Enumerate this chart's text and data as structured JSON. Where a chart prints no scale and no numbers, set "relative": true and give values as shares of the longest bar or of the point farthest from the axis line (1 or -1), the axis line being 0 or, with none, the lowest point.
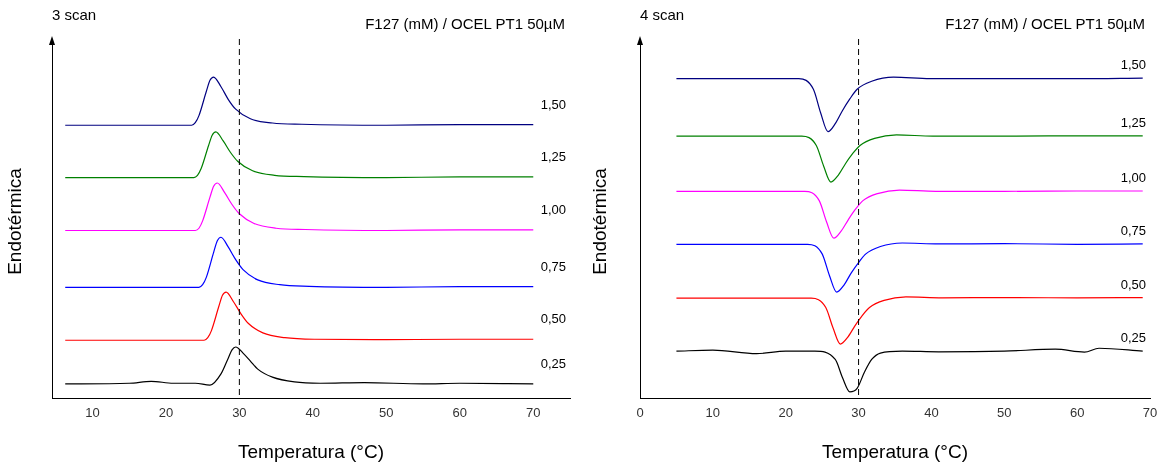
{
  "chart_data": [
    {
      "type": "line",
      "title": "3 scan",
      "subtitle": "F127 (mM) / OCEL PT1 50µM",
      "xlabel": "Temperatura (°C)",
      "ylabel": "Endotérmica",
      "relative": true,
      "xlim": [
        4.5,
        75
      ],
      "xticks": [
        10,
        20,
        30,
        40,
        50,
        60,
        70
      ],
      "grid": false,
      "legend": false,
      "marker": "none",
      "line_style": "solid",
      "ref_lines": [
        {
          "axis": "x",
          "value": 30,
          "color": "#000000",
          "line_style": "dashed"
        }
      ],
      "series": [
        {
          "name": "1,50",
          "color": "#000080",
          "x": [
            6.3,
            23.5,
            24,
            24.5,
            25.5,
            26,
            26.5,
            27.5,
            28.5,
            29.5,
            31.5,
            34.5,
            38.5,
            50,
            60,
            70
          ],
          "values": [
            0.85,
            0.85,
            0.858,
            0.88,
            0.955,
            0.99,
            1.0,
            0.97,
            0.93,
            0.9,
            0.87,
            0.857,
            0.853,
            0.85,
            0.852,
            0.852
          ]
        },
        {
          "name": "1,25",
          "color": "#008000",
          "x": [
            6.3,
            23.8,
            24.3,
            24.8,
            25.8,
            26.3,
            26.8,
            27.8,
            28.8,
            29.8,
            31.8,
            34.8,
            38.8,
            50,
            60,
            70
          ],
          "values": [
            0.687,
            0.687,
            0.694,
            0.715,
            0.786,
            0.819,
            0.829,
            0.801,
            0.765,
            0.737,
            0.708,
            0.694,
            0.69,
            0.687,
            0.689,
            0.689
          ]
        },
        {
          "name": "1,00",
          "color": "#ff00ff",
          "x": [
            6.3,
            24,
            24.5,
            25,
            26,
            26.5,
            27,
            28,
            29,
            30,
            32,
            35,
            39,
            50,
            60,
            70
          ],
          "values": [
            0.522,
            0.522,
            0.529,
            0.552,
            0.626,
            0.66,
            0.67,
            0.64,
            0.603,
            0.574,
            0.544,
            0.529,
            0.525,
            0.522,
            0.524,
            0.524
          ]
        },
        {
          "name": "0,75",
          "color": "#0000ff",
          "x": [
            6.3,
            24.5,
            25,
            25.5,
            26.5,
            27,
            27.5,
            28.5,
            29.5,
            30.5,
            32.5,
            35.5,
            39.5,
            50,
            60,
            70
          ],
          "values": [
            0.345,
            0.345,
            0.353,
            0.376,
            0.454,
            0.49,
            0.501,
            0.47,
            0.431,
            0.4,
            0.368,
            0.353,
            0.348,
            0.345,
            0.347,
            0.347
          ]
        },
        {
          "name": "0,50",
          "color": "#ff0000",
          "x": [
            6.3,
            25.2,
            25.7,
            26.2,
            27.2,
            27.7,
            28.2,
            29.2,
            30.2,
            31.2,
            33.2,
            36.2,
            40.2,
            50,
            60,
            70
          ],
          "values": [
            0.18,
            0.18,
            0.188,
            0.21,
            0.285,
            0.32,
            0.33,
            0.3,
            0.263,
            0.233,
            0.203,
            0.188,
            0.183,
            0.182,
            0.183,
            0.183
          ]
        },
        {
          "name": "0,25",
          "color": "#000000",
          "x": [
            6.3,
            15,
            18,
            21,
            24,
            26,
            27.5,
            28.5,
            29,
            29.5,
            30.5,
            31.5,
            32.5,
            34.5,
            37.5,
            41,
            47,
            55,
            60,
            70
          ],
          "values": [
            0.044,
            0.046,
            0.052,
            0.046,
            0.046,
            0.04,
            0.075,
            0.125,
            0.15,
            0.159,
            0.14,
            0.115,
            0.09,
            0.065,
            0.05,
            0.046,
            0.048,
            0.044,
            0.046,
            0.044
          ]
        }
      ]
    },
    {
      "type": "line",
      "title": "4 scan",
      "subtitle": "F127 (mM) / OCEL PT1 50µM",
      "xlabel": "Temperatura (°C)",
      "ylabel": "Endotérmica",
      "relative": true,
      "xlim": [
        0,
        70
      ],
      "xticks": [
        0,
        10,
        20,
        30,
        40,
        50,
        60,
        70
      ],
      "grid": false,
      "legend": false,
      "marker": "none",
      "line_style": "solid",
      "ref_lines": [
        {
          "axis": "x",
          "value": 30,
          "color": "#000000",
          "line_style": "dashed"
        }
      ],
      "series": [
        {
          "name": "1,50",
          "color": "#000080",
          "x": [
            5,
            21.8,
            23.8,
            24.8,
            25.8,
            26.8,
            27.8,
            28.8,
            29.8,
            31.8,
            34.8,
            39.8,
            50,
            60,
            69
          ],
          "values": [
            0.995,
            0.995,
            0.962,
            0.888,
            0.83,
            0.855,
            0.896,
            0.932,
            0.962,
            0.987,
            1.0,
            0.995,
            0.995,
            0.995,
            0.997
          ]
        },
        {
          "name": "1,25",
          "color": "#008000",
          "x": [
            5,
            22.2,
            24.2,
            25.2,
            26.2,
            27.2,
            28.2,
            29.2,
            30.2,
            32.2,
            35.2,
            40.2,
            50,
            60,
            69
          ],
          "values": [
            0.816,
            0.816,
            0.787,
            0.723,
            0.673,
            0.694,
            0.73,
            0.762,
            0.787,
            0.809,
            0.82,
            0.816,
            0.816,
            0.817,
            0.817
          ]
        },
        {
          "name": "1,00",
          "color": "#ff00ff",
          "x": [
            5,
            22.6,
            24.6,
            25.6,
            26.6,
            27.6,
            28.6,
            29.6,
            30.6,
            32.6,
            35.6,
            40.6,
            50,
            60,
            69
          ],
          "values": [
            0.644,
            0.644,
            0.615,
            0.549,
            0.498,
            0.52,
            0.556,
            0.589,
            0.615,
            0.637,
            0.648,
            0.644,
            0.644,
            0.645,
            0.645
          ]
        },
        {
          "name": "0,75",
          "color": "#0000ff",
          "x": [
            5,
            23,
            25,
            26,
            27,
            28,
            29,
            30,
            31,
            33,
            36,
            41,
            50,
            60,
            69
          ],
          "values": [
            0.479,
            0.479,
            0.449,
            0.382,
            0.33,
            0.352,
            0.39,
            0.422,
            0.449,
            0.472,
            0.483,
            0.48,
            0.481,
            0.479,
            0.48
          ]
        },
        {
          "name": "0,50",
          "color": "#ff0000",
          "x": [
            5,
            23.5,
            25.5,
            26.5,
            27.5,
            28.5,
            29.5,
            30.5,
            31.5,
            33.5,
            36.5,
            41.5,
            50,
            60,
            69
          ],
          "values": [
            0.311,
            0.311,
            0.282,
            0.218,
            0.168,
            0.189,
            0.225,
            0.257,
            0.282,
            0.304,
            0.315,
            0.312,
            0.313,
            0.312,
            0.313
          ]
        },
        {
          "name": "0,25",
          "color": "#000000",
          "x": [
            5,
            10,
            16,
            20,
            24,
            26.8,
            27.8,
            28.8,
            29.8,
            30.8,
            31.8,
            33,
            36,
            41,
            50,
            57,
            61,
            63,
            69
          ],
          "values": [
            0.146,
            0.149,
            0.138,
            0.146,
            0.146,
            0.12,
            0.063,
            0.019,
            0.03,
            0.08,
            0.12,
            0.14,
            0.146,
            0.144,
            0.146,
            0.152,
            0.143,
            0.155,
            0.146
          ]
        }
      ]
    }
  ]
}
